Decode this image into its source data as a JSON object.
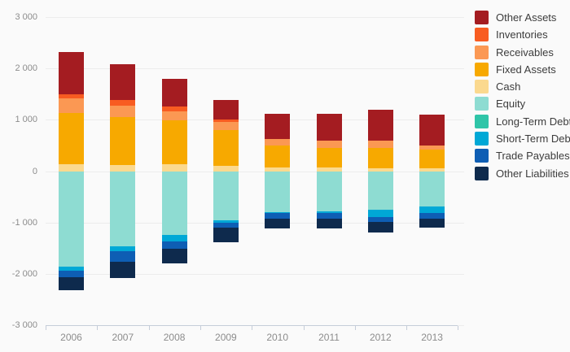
{
  "chart_data": {
    "type": "bar",
    "variant": "diverging-stacked-column",
    "title": "",
    "xlabel": "",
    "ylabel": "",
    "categories": [
      "2006",
      "2007",
      "2008",
      "2009",
      "2010",
      "2011",
      "2012",
      "2013"
    ],
    "y_ticks": [
      "3 000",
      "2 000",
      "1 000",
      "0",
      "-1 000",
      "-2 000",
      "-3 000"
    ],
    "y_tick_values": [
      3000,
      2000,
      1000,
      0,
      -1000,
      -2000,
      -3000
    ],
    "ylim": [
      -3000,
      3000
    ],
    "grid": true,
    "legend_position": "right",
    "positive_stack_order_bottom_to_top": [
      "Cash",
      "Fixed Assets",
      "Receivables",
      "Inventories",
      "Other Assets"
    ],
    "negative_stack_order_top_to_bottom": [
      "Equity",
      "Long-Term Debt",
      "Short-Term Debt",
      "Trade Payables",
      "Other Liabilities"
    ],
    "series": [
      {
        "name": "Other Assets",
        "color": "#a41c21",
        "values": [
          830,
          695,
          540,
          390,
          480,
          515,
          610,
          600
        ]
      },
      {
        "name": "Inventories",
        "color": "#f85c21",
        "values": [
          80,
          105,
          90,
          35,
          0,
          0,
          0,
          0
        ]
      },
      {
        "name": "Receivables",
        "color": "#fb9853",
        "values": [
          280,
          230,
          185,
          160,
          130,
          150,
          130,
          80
        ]
      },
      {
        "name": "Fixed Assets",
        "color": "#f7a900",
        "values": [
          1000,
          935,
          845,
          700,
          430,
          380,
          400,
          370
        ]
      },
      {
        "name": "Cash",
        "color": "#fbd98f",
        "values": [
          130,
          115,
          140,
          105,
          70,
          65,
          60,
          50
        ]
      },
      {
        "name": "Equity",
        "color": "#8edcd2",
        "values": [
          -1850,
          -1465,
          -1240,
          -960,
          -795,
          -780,
          -745,
          -685
        ]
      },
      {
        "name": "Long-Term Debt",
        "color": "#2fc5a8",
        "values": [
          0,
          0,
          0,
          0,
          0,
          0,
          0,
          0
        ]
      },
      {
        "name": "Short-Term Debt",
        "color": "#00a8d6",
        "values": [
          -90,
          -95,
          -130,
          -50,
          -25,
          -40,
          -150,
          -135
        ]
      },
      {
        "name": "Trade Payables",
        "color": "#0e5eb4",
        "values": [
          -120,
          -195,
          -140,
          -90,
          -105,
          -105,
          -95,
          -105
        ]
      },
      {
        "name": "Other Liabilities",
        "color": "#0e2a4d",
        "values": [
          -260,
          -325,
          -290,
          -290,
          -185,
          -185,
          -210,
          -175
        ]
      }
    ],
    "totals_positive": [
      2320,
      2080,
      1800,
      1390,
      1110,
      1110,
      1200,
      1100
    ],
    "totals_negative": [
      -2320,
      -2080,
      -1800,
      -1390,
      -1110,
      -1110,
      -1200,
      -1100
    ]
  },
  "colors": {
    "background": "#fafafa",
    "gridline": "#ececec",
    "axis_line": "#c5cdd9",
    "tick_text": "#8c8c8c",
    "legend_text": "#3c3c3c"
  }
}
